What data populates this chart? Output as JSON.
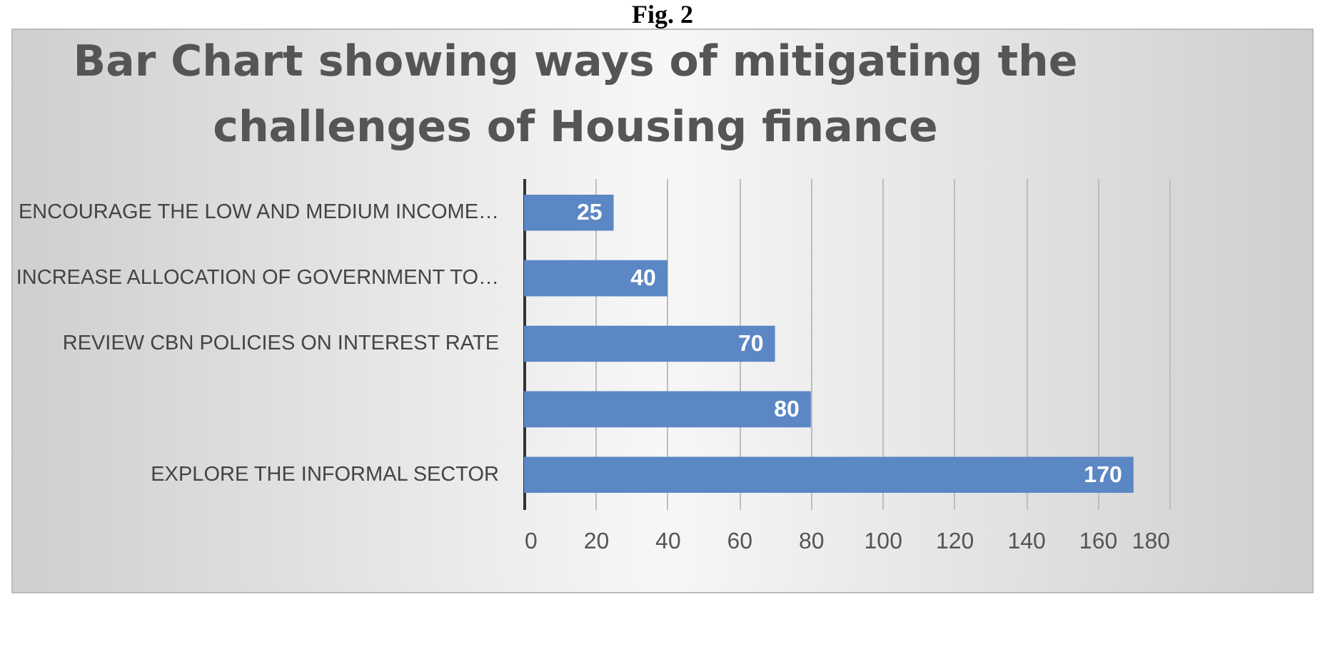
{
  "chart_data": {
    "type": "bar",
    "orientation": "horizontal",
    "title": "Bar Chart showing ways of mitigating the challenges of Housing finance",
    "annotations": [
      "Fig. 2"
    ],
    "categories": [
      "ENCOURAGE THE LOW AND MEDIUM INCOME…",
      "INCREASE ALLOCATION OF GOVERNMENT TO…",
      "REVIEW CBN POLICIES ON INTEREST RATE",
      null,
      "EXPLORE THE INFORMAL SECTOR"
    ],
    "values": [
      25,
      40,
      70,
      80,
      170
    ],
    "color": "#5b87c5",
    "xlim": [
      0,
      180
    ],
    "xticks": [
      0,
      20,
      40,
      60,
      80,
      100,
      120,
      140,
      160,
      180
    ],
    "grid": "x",
    "data_labels": true
  }
}
